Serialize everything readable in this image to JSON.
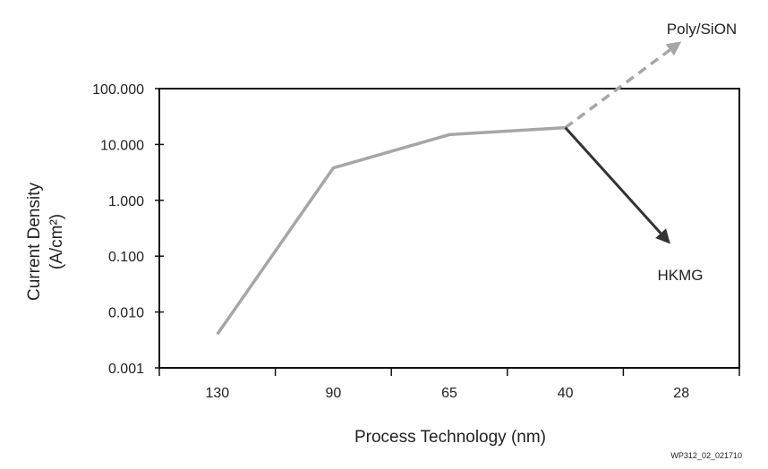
{
  "chart_data": {
    "type": "line",
    "title": "",
    "xlabel": "Process Technology (nm)",
    "ylabel_line1": "Current Density",
    "ylabel_line2": "(A/cm²)",
    "categories": [
      "130",
      "90",
      "65",
      "40",
      "28"
    ],
    "y_scale": "log",
    "ylim": [
      0.001,
      100
    ],
    "y_ticks": [
      "0.001",
      "0.010",
      "0.100",
      "1.000",
      "10.000",
      "100.000"
    ],
    "series": [
      {
        "style": "solid",
        "color": "#a6a6a6",
        "points": [
          {
            "x": "130",
            "y": 0.004
          },
          {
            "x": "90",
            "y": 3.8
          },
          {
            "x": "65",
            "y": 15
          },
          {
            "x": "40",
            "y": 20
          }
        ]
      },
      {
        "name": "Poly/SiON",
        "style": "dashed-arrow",
        "color": "#a6a6a6",
        "points": [
          {
            "x": "40",
            "y": 20
          },
          {
            "x": "28",
            "y": 700
          }
        ]
      },
      {
        "name": "HKMG",
        "style": "solid-arrow",
        "color": "#333333",
        "points": [
          {
            "x": "40",
            "y": 20
          },
          {
            "x": "28",
            "y": 0.1
          }
        ]
      }
    ],
    "annotations": [
      "Poly/SiON",
      "HKMG"
    ],
    "figure_id": "WP312_02_021710",
    "grid": false
  }
}
